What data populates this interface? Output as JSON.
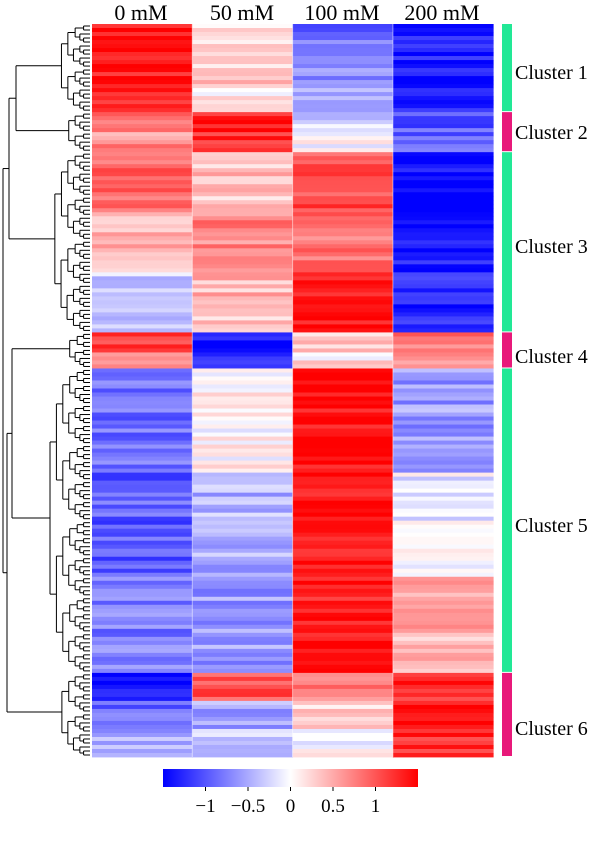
{
  "chart_data": {
    "type": "heatmap",
    "columns": [
      "0 mM",
      "50 mM",
      "100 mM",
      "200 mM"
    ],
    "color_scale": {
      "min": -1.5,
      "max": 1.5,
      "low": "#0000ff",
      "mid": "#ffffff",
      "high": "#ff0000"
    },
    "colorbar_ticks": [
      {
        "value": -1,
        "label": "−1"
      },
      {
        "value": -0.5,
        "label": "−0.5"
      },
      {
        "value": 0,
        "label": "0"
      },
      {
        "value": 0.5,
        "label": "0.5"
      },
      {
        "value": 1,
        "label": "1"
      }
    ],
    "clusters": [
      {
        "label": "Cluster 1",
        "color": "#22e896",
        "rows": 22,
        "profiles": [
          [
            1.45,
            0.2,
            -0.85,
            -1.35
          ],
          [
            1.3,
            0.35,
            -0.7,
            -1.3
          ],
          [
            1.2,
            0.05,
            -0.6,
            -1.2
          ]
        ]
      },
      {
        "label": "Cluster 2",
        "color": "#e8197a",
        "rows": 10,
        "profiles": [
          [
            0.9,
            1.35,
            -0.25,
            -1.0
          ],
          [
            0.65,
            1.2,
            0.05,
            -0.9
          ]
        ]
      },
      {
        "label": "Cluster 3",
        "color": "#22e896",
        "rows": 45,
        "profiles": [
          [
            0.85,
            0.35,
            1.05,
            -1.45
          ],
          [
            0.45,
            0.7,
            0.8,
            -1.4
          ],
          [
            -0.25,
            0.4,
            1.3,
            -1.3
          ]
        ]
      },
      {
        "label": "Cluster 4",
        "color": "#e8197a",
        "rows": 9,
        "profiles": [
          [
            1.2,
            -1.45,
            0.3,
            0.85
          ],
          [
            0.8,
            -1.25,
            0.15,
            0.6
          ]
        ]
      },
      {
        "label": "Cluster 5",
        "color": "#22e896",
        "rows": 76,
        "profiles": [
          [
            -0.85,
            0.05,
            1.45,
            -0.6
          ],
          [
            -0.95,
            -0.45,
            1.4,
            -0.1
          ],
          [
            -0.75,
            -0.6,
            1.35,
            0.45
          ]
        ]
      },
      {
        "label": "Cluster 6",
        "color": "#e8197a",
        "rows": 21,
        "profiles": [
          [
            -1.35,
            1.0,
            0.75,
            1.2
          ],
          [
            -0.85,
            -0.55,
            0.25,
            1.4
          ],
          [
            -0.55,
            -0.35,
            -0.05,
            1.25
          ]
        ]
      }
    ]
  }
}
